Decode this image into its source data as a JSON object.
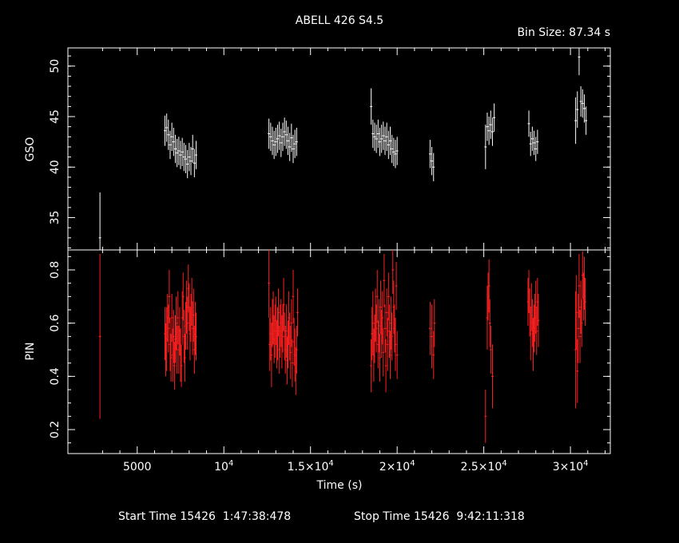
{
  "header": {
    "title": "ABELL 426 S4.5",
    "bin_size": "Bin Size: 87.34 s"
  },
  "footer": {
    "start_time": "Start Time 15426  1:47:38:478",
    "stop_time": "Stop Time 15426  9:42:11:318"
  },
  "colors": {
    "gso": "#ffffff",
    "pin": "#ff2020",
    "axes": "#ffffff"
  },
  "chart_data": {
    "type": "scatter",
    "x_label": "Time (s)",
    "x_range": [
      1000,
      32300
    ],
    "x_ticks": [
      {
        "v": 5000,
        "label": "5000"
      },
      {
        "v": 10000,
        "label": "10⁴",
        "base": "10",
        "exp": "4"
      },
      {
        "v": 15000,
        "label": "1.5×10⁴",
        "base": "1.5×10",
        "exp": "4"
      },
      {
        "v": 20000,
        "label": "2×10⁴",
        "base": "2×10",
        "exp": "4"
      },
      {
        "v": 25000,
        "label": "2.5×10⁴",
        "base": "2.5×10",
        "exp": "4"
      },
      {
        "v": 30000,
        "label": "3×10⁴",
        "base": "3×10",
        "exp": "4"
      }
    ],
    "panels": [
      {
        "name": "GSO",
        "y_range": [
          31.8,
          51.8
        ],
        "y_ticks": [
          {
            "v": 35,
            "label": "35"
          },
          {
            "v": 40,
            "label": "40"
          },
          {
            "v": 45,
            "label": "45"
          },
          {
            "v": 50,
            "label": "50"
          }
        ],
        "points": [
          [
            2850,
            33.0,
            4.5
          ],
          [
            6600,
            43.6,
            1.5
          ],
          [
            6700,
            43.9,
            1.4
          ],
          [
            6800,
            43.2,
            1.5
          ],
          [
            6900,
            42.2,
            1.4
          ],
          [
            7000,
            43.0,
            1.4
          ],
          [
            7100,
            42.5,
            1.4
          ],
          [
            7200,
            41.8,
            1.4
          ],
          [
            7300,
            41.4,
            1.4
          ],
          [
            7400,
            41.6,
            1.4
          ],
          [
            7500,
            41.2,
            1.4
          ],
          [
            7600,
            41.5,
            1.4
          ],
          [
            7700,
            41.0,
            1.4
          ],
          [
            7800,
            40.8,
            1.4
          ],
          [
            7900,
            40.3,
            1.4
          ],
          [
            8000,
            41.0,
            1.4
          ],
          [
            8100,
            40.6,
            1.4
          ],
          [
            8200,
            41.8,
            1.4
          ],
          [
            8300,
            40.4,
            1.4
          ],
          [
            8400,
            41.2,
            1.4
          ],
          [
            12600,
            43.3,
            1.5
          ],
          [
            12700,
            43.0,
            1.4
          ],
          [
            12800,
            42.6,
            1.4
          ],
          [
            12900,
            42.2,
            1.4
          ],
          [
            13000,
            42.5,
            1.4
          ],
          [
            13100,
            42.8,
            1.4
          ],
          [
            13200,
            43.1,
            1.4
          ],
          [
            13300,
            42.4,
            1.4
          ],
          [
            13400,
            43.0,
            1.4
          ],
          [
            13500,
            43.5,
            1.4
          ],
          [
            13600,
            43.2,
            1.4
          ],
          [
            13700,
            42.6,
            1.4
          ],
          [
            13800,
            42.0,
            1.4
          ],
          [
            13900,
            42.9,
            1.4
          ],
          [
            14000,
            41.8,
            1.4
          ],
          [
            14100,
            42.3,
            1.4
          ],
          [
            14200,
            42.5,
            1.4
          ],
          [
            18500,
            46.0,
            1.8
          ],
          [
            18600,
            43.3,
            1.4
          ],
          [
            18700,
            43.0,
            1.4
          ],
          [
            18800,
            42.8,
            1.4
          ],
          [
            18900,
            43.3,
            1.4
          ],
          [
            19000,
            42.5,
            1.4
          ],
          [
            19100,
            42.8,
            1.4
          ],
          [
            19200,
            43.1,
            1.4
          ],
          [
            19300,
            42.6,
            1.4
          ],
          [
            19400,
            43.0,
            1.4
          ],
          [
            19500,
            42.2,
            1.4
          ],
          [
            19600,
            42.6,
            1.4
          ],
          [
            19700,
            41.8,
            1.4
          ],
          [
            19800,
            41.5,
            1.4
          ],
          [
            19900,
            41.3,
            1.4
          ],
          [
            20000,
            41.6,
            1.4
          ],
          [
            21900,
            41.3,
            1.4
          ],
          [
            22000,
            40.6,
            1.4
          ],
          [
            22100,
            40.0,
            1.4
          ],
          [
            25100,
            42.0,
            2.2
          ],
          [
            25200,
            44.0,
            1.4
          ],
          [
            25300,
            43.6,
            1.4
          ],
          [
            25400,
            44.2,
            1.4
          ],
          [
            25500,
            43.5,
            1.4
          ],
          [
            25600,
            44.9,
            1.4
          ],
          [
            27600,
            44.3,
            1.3
          ],
          [
            27700,
            42.3,
            1.2
          ],
          [
            27800,
            42.8,
            1.2
          ],
          [
            27900,
            42.4,
            1.2
          ],
          [
            28000,
            41.8,
            1.2
          ],
          [
            28100,
            42.5,
            1.2
          ],
          [
            30300,
            44.6,
            2.3
          ],
          [
            30400,
            45.7,
            1.8
          ],
          [
            30500,
            50.9,
            1.8
          ],
          [
            30600,
            46.5,
            1.5
          ],
          [
            30700,
            46.3,
            1.4
          ],
          [
            30800,
            45.8,
            1.4
          ],
          [
            30900,
            44.6,
            1.4
          ]
        ]
      },
      {
        "name": "PIN",
        "y_range": [
          0.11,
          0.875
        ],
        "y_ticks": [
          {
            "v": 0.2,
            "label": "0.2"
          },
          {
            "v": 0.4,
            "label": "0.4"
          },
          {
            "v": 0.6,
            "label": "0.6"
          },
          {
            "v": 0.8,
            "label": "0.8"
          }
        ],
        "points": [
          [
            2850,
            0.55,
            0.31
          ],
          [
            6600,
            0.56,
            0.1
          ],
          [
            6650,
            0.5,
            0.1
          ],
          [
            6700,
            0.54,
            0.12
          ],
          [
            6750,
            0.62,
            0.09
          ],
          [
            6800,
            0.58,
            0.09
          ],
          [
            6850,
            0.7,
            0.1
          ],
          [
            6900,
            0.52,
            0.1
          ],
          [
            6950,
            0.47,
            0.09
          ],
          [
            7000,
            0.62,
            0.09
          ],
          [
            7050,
            0.48,
            0.1
          ],
          [
            7100,
            0.55,
            0.1
          ],
          [
            7150,
            0.44,
            0.09
          ],
          [
            7200,
            0.54,
            0.09
          ],
          [
            7250,
            0.6,
            0.1
          ],
          [
            7300,
            0.5,
            0.09
          ],
          [
            7350,
            0.62,
            0.1
          ],
          [
            7400,
            0.5,
            0.09
          ],
          [
            7450,
            0.57,
            0.09
          ],
          [
            7500,
            0.48,
            0.1
          ],
          [
            7550,
            0.44,
            0.08
          ],
          [
            7600,
            0.62,
            0.1
          ],
          [
            7650,
            0.7,
            0.09
          ],
          [
            7700,
            0.55,
            0.1
          ],
          [
            7750,
            0.47,
            0.09
          ],
          [
            7800,
            0.59,
            0.09
          ],
          [
            7850,
            0.66,
            0.1
          ],
          [
            7900,
            0.6,
            0.1
          ],
          [
            7950,
            0.73,
            0.09
          ],
          [
            8000,
            0.66,
            0.09
          ],
          [
            8050,
            0.56,
            0.1
          ],
          [
            8100,
            0.62,
            0.09
          ],
          [
            8150,
            0.68,
            0.09
          ],
          [
            8200,
            0.58,
            0.1
          ],
          [
            8250,
            0.63,
            0.1
          ],
          [
            8300,
            0.5,
            0.09
          ],
          [
            8350,
            0.58,
            0.1
          ],
          [
            8400,
            0.55,
            0.09
          ],
          [
            12600,
            0.75,
            0.13
          ],
          [
            12650,
            0.52,
            0.1
          ],
          [
            12700,
            0.56,
            0.1
          ],
          [
            12750,
            0.48,
            0.12
          ],
          [
            12800,
            0.6,
            0.09
          ],
          [
            12850,
            0.62,
            0.1
          ],
          [
            12900,
            0.54,
            0.09
          ],
          [
            12950,
            0.57,
            0.1
          ],
          [
            13000,
            0.61,
            0.09
          ],
          [
            13050,
            0.52,
            0.09
          ],
          [
            13100,
            0.56,
            0.1
          ],
          [
            13150,
            0.64,
            0.09
          ],
          [
            13200,
            0.5,
            0.09
          ],
          [
            13250,
            0.57,
            0.1
          ],
          [
            13300,
            0.6,
            0.09
          ],
          [
            13350,
            0.53,
            0.1
          ],
          [
            13400,
            0.58,
            0.09
          ],
          [
            13450,
            0.67,
            0.1
          ],
          [
            13500,
            0.55,
            0.09
          ],
          [
            13550,
            0.5,
            0.09
          ],
          [
            13600,
            0.57,
            0.1
          ],
          [
            13650,
            0.46,
            0.09
          ],
          [
            13700,
            0.52,
            0.09
          ],
          [
            13750,
            0.62,
            0.1
          ],
          [
            13800,
            0.55,
            0.09
          ],
          [
            13850,
            0.49,
            0.1
          ],
          [
            13900,
            0.6,
            0.09
          ],
          [
            13950,
            0.45,
            0.09
          ],
          [
            14000,
            0.7,
            0.1
          ],
          [
            14050,
            0.53,
            0.09
          ],
          [
            14100,
            0.48,
            0.1
          ],
          [
            14150,
            0.42,
            0.09
          ],
          [
            14200,
            0.5,
            0.09
          ],
          [
            14250,
            0.64,
            0.09
          ],
          [
            18500,
            0.44,
            0.1
          ],
          [
            18550,
            0.56,
            0.1
          ],
          [
            18600,
            0.6,
            0.12
          ],
          [
            18650,
            0.48,
            0.1
          ],
          [
            18700,
            0.54,
            0.09
          ],
          [
            18750,
            0.63,
            0.1
          ],
          [
            18800,
            0.58,
            0.09
          ],
          [
            18850,
            0.7,
            0.1
          ],
          [
            18900,
            0.52,
            0.09
          ],
          [
            18950,
            0.59,
            0.1
          ],
          [
            19000,
            0.47,
            0.09
          ],
          [
            19050,
            0.66,
            0.1
          ],
          [
            19100,
            0.56,
            0.09
          ],
          [
            19150,
            0.62,
            0.1
          ],
          [
            19200,
            0.49,
            0.09
          ],
          [
            19250,
            0.76,
            0.1
          ],
          [
            19300,
            0.58,
            0.09
          ],
          [
            19350,
            0.44,
            0.1
          ],
          [
            19400,
            0.64,
            0.09
          ],
          [
            19450,
            0.52,
            0.1
          ],
          [
            19500,
            0.7,
            0.09
          ],
          [
            19550,
            0.57,
            0.1
          ],
          [
            19600,
            0.48,
            0.09
          ],
          [
            19650,
            0.6,
            0.1
          ],
          [
            19700,
            0.55,
            0.09
          ],
          [
            19750,
            0.8,
            0.09
          ],
          [
            19800,
            0.66,
            0.1
          ],
          [
            19850,
            0.58,
            0.09
          ],
          [
            19900,
            0.52,
            0.1
          ],
          [
            19950,
            0.74,
            0.09
          ],
          [
            20000,
            0.48,
            0.09
          ],
          [
            21900,
            0.58,
            0.1
          ],
          [
            22000,
            0.55,
            0.12
          ],
          [
            22100,
            0.48,
            0.09
          ],
          [
            22150,
            0.6,
            0.09
          ],
          [
            25100,
            0.25,
            0.1
          ],
          [
            25200,
            0.62,
            0.12
          ],
          [
            25250,
            0.7,
            0.09
          ],
          [
            25300,
            0.74,
            0.1
          ],
          [
            25350,
            0.6,
            0.09
          ],
          [
            25400,
            0.5,
            0.09
          ],
          [
            25500,
            0.4,
            0.12
          ],
          [
            27550,
            0.68,
            0.09
          ],
          [
            27600,
            0.72,
            0.08
          ],
          [
            27650,
            0.64,
            0.09
          ],
          [
            27700,
            0.56,
            0.1
          ],
          [
            27750,
            0.66,
            0.09
          ],
          [
            27800,
            0.6,
            0.09
          ],
          [
            27850,
            0.52,
            0.1
          ],
          [
            27900,
            0.58,
            0.09
          ],
          [
            27950,
            0.62,
            0.09
          ],
          [
            28000,
            0.66,
            0.1
          ],
          [
            28050,
            0.57,
            0.09
          ],
          [
            28100,
            0.68,
            0.09
          ],
          [
            28150,
            0.61,
            0.1
          ],
          [
            30300,
            0.5,
            0.22
          ],
          [
            30350,
            0.64,
            0.14
          ],
          [
            30400,
            0.42,
            0.12
          ],
          [
            30450,
            0.58,
            0.13
          ],
          [
            30500,
            0.74,
            0.12
          ],
          [
            30550,
            0.55,
            0.1
          ],
          [
            30600,
            0.66,
            0.1
          ],
          [
            30650,
            0.6,
            0.09
          ],
          [
            30700,
            0.78,
            0.09
          ],
          [
            30750,
            0.7,
            0.09
          ],
          [
            30800,
            0.75,
            0.1
          ],
          [
            30850,
            0.68,
            0.09
          ]
        ]
      }
    ]
  }
}
